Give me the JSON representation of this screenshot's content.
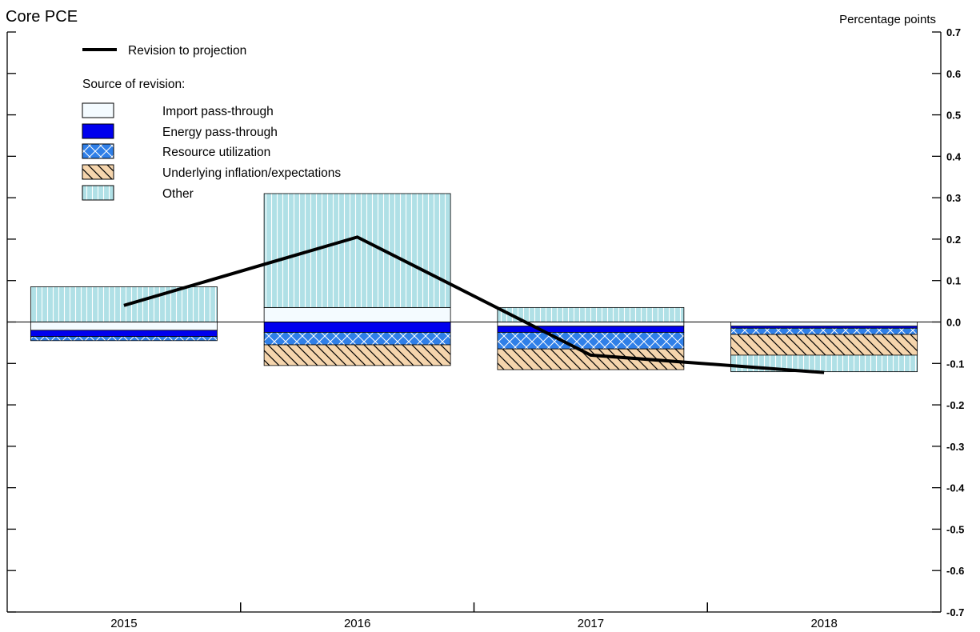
{
  "chart_data": {
    "type": "bar",
    "title": "Core PCE",
    "ylabel": "Percentage points",
    "xlabel": "",
    "ylim": [
      -0.7,
      0.7
    ],
    "yticks": [
      0.7,
      0.6,
      0.5,
      0.4,
      0.3,
      0.2,
      0.1,
      0.0,
      -0.1,
      -0.2,
      -0.3,
      -0.4,
      -0.5,
      -0.6,
      -0.7
    ],
    "ytick_labels": [
      "0.7",
      "0.6",
      "0.5",
      "0.4",
      "0.3",
      "0.2",
      "0.1",
      "0.0",
      "-0.1",
      "-0.2",
      "-0.3",
      "-0.4",
      "-0.5",
      "-0.6",
      "-0.7"
    ],
    "categories": [
      "2015",
      "2016",
      "2017",
      "2018"
    ],
    "stacked": true,
    "legend_heading": "Source of revision:",
    "line_series": {
      "name": "Revision to projection",
      "values": [
        0.04,
        0.205,
        -0.08,
        -0.122
      ],
      "color": "#000000"
    },
    "series": [
      {
        "name": "Import pass-through",
        "key": "import",
        "values": [
          -0.02,
          0.035,
          -0.01,
          -0.01
        ],
        "color": "#f4fbff"
      },
      {
        "name": "Energy pass-through",
        "key": "energy",
        "values": [
          -0.015,
          -0.025,
          -0.015,
          -0.005
        ],
        "color": "#0000ee"
      },
      {
        "name": "Resource utilization",
        "key": "resource",
        "values": [
          -0.01,
          -0.03,
          -0.04,
          -0.015
        ],
        "color": "#2f7fe8"
      },
      {
        "name": "Underlying inflation/expectations",
        "key": "underlying",
        "values": [
          0.0,
          -0.05,
          -0.05,
          -0.05
        ],
        "color": "#f5d5ad"
      },
      {
        "name": "Other",
        "key": "other",
        "values": [
          0.085,
          0.275,
          0.035,
          -0.04
        ],
        "color": "#b0e0e6"
      }
    ],
    "grid": false,
    "legend_position": "top-left"
  }
}
